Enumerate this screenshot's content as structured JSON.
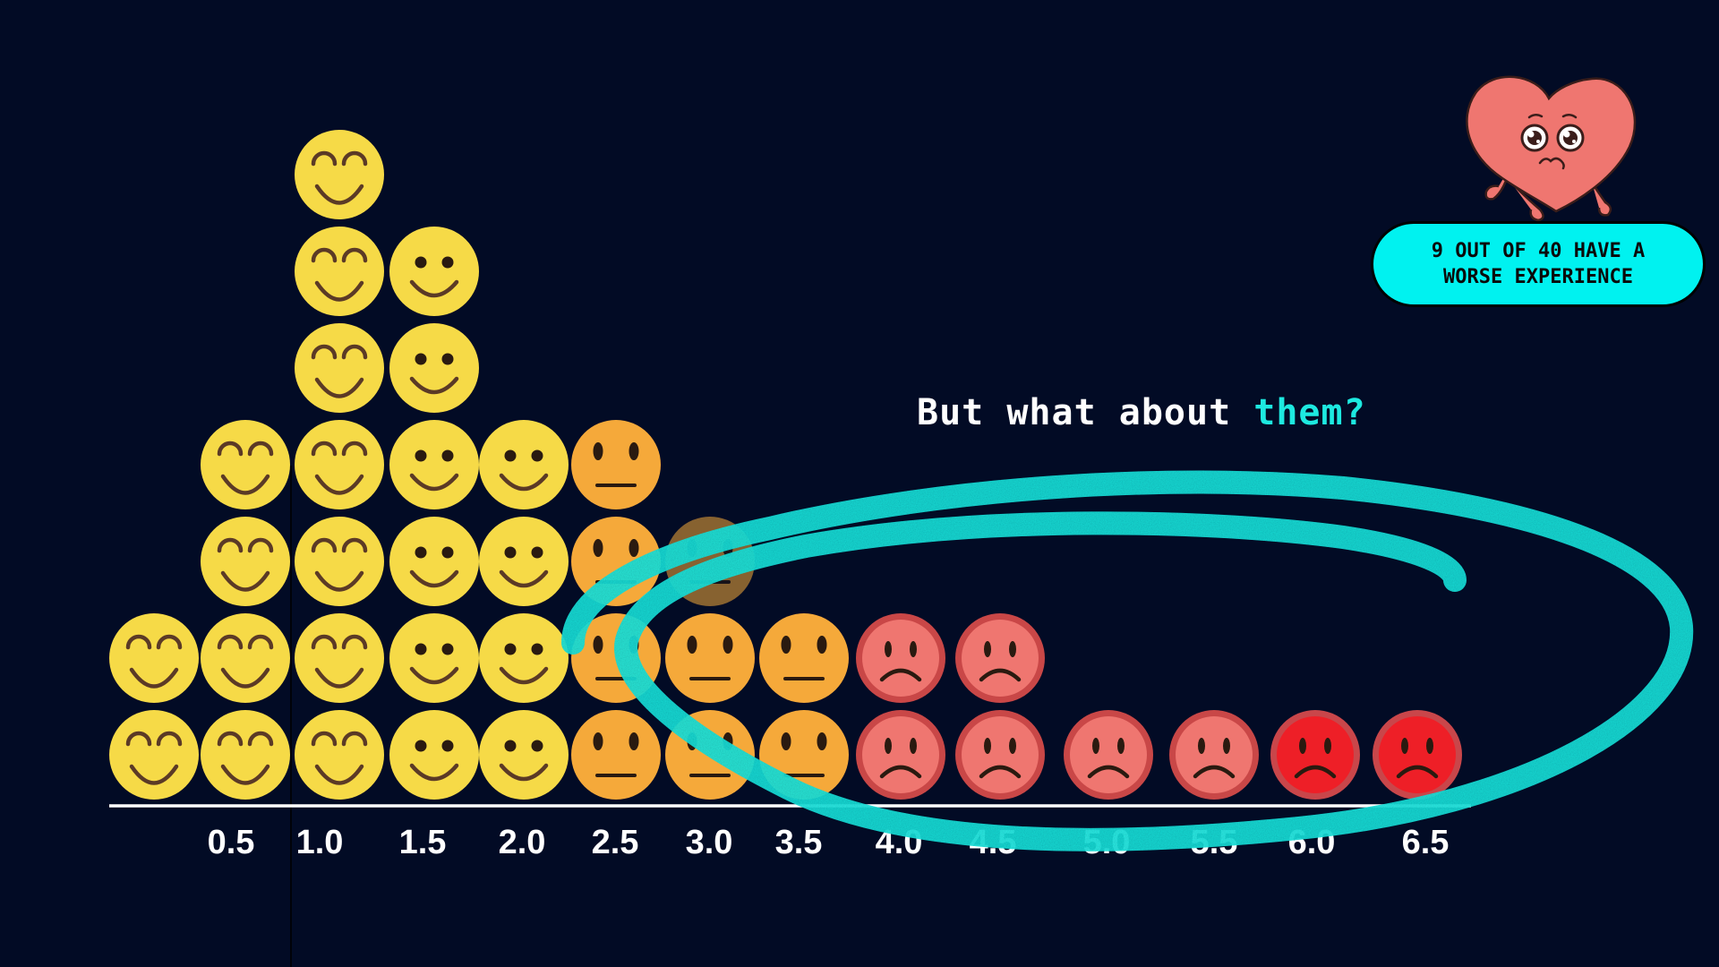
{
  "headline": {
    "prefix": "But what about ",
    "highlight": "them?"
  },
  "callout": {
    "line1": "9 OUT OF 40 HAVE A",
    "line2": "WORSE EXPERIENCE"
  },
  "colors": {
    "background": "#020b25",
    "happy": "#f6da47",
    "neutral": "#f5a93a",
    "sad": "#ef7670",
    "sad_ring": "#c94747",
    "very_sad": "#ee1f27",
    "very_sad_ring": "#c9464a",
    "accent": "#1de9e0",
    "feature": "#5b3a26",
    "feature_dark": "#2a1a10"
  },
  "icons": {
    "heart": "sad-heart-character-icon",
    "happy": "grinning-face-icon",
    "smile": "smiling-face-icon",
    "neutral": "neutral-face-icon",
    "sad": "frowning-face-icon"
  },
  "chart_data": {
    "type": "dot-histogram",
    "title": "",
    "xlabel": "",
    "ylabel": "",
    "tick_labels": [
      "0.5",
      "1.0",
      "1.5",
      "2.0",
      "2.5",
      "3.0",
      "3.5",
      "4.0",
      "4.5",
      "5.0",
      "5.5",
      "6.0",
      "6.5"
    ],
    "columns": [
      {
        "count": 2,
        "mood": "happy"
      },
      {
        "count": 4,
        "mood": "happy"
      },
      {
        "count": 7,
        "mood": "happy"
      },
      {
        "count": 6,
        "mood": "smile"
      },
      {
        "count": 4,
        "mood": "smile"
      },
      {
        "count": 4,
        "mood": "neutral"
      },
      {
        "count": 3,
        "mood": "neutral"
      },
      {
        "count": 2,
        "mood": "neutral"
      },
      {
        "count": 2,
        "mood": "sad"
      },
      {
        "count": 2,
        "mood": "sad"
      },
      {
        "count": 1,
        "mood": "sad"
      },
      {
        "count": 1,
        "mood": "sad"
      },
      {
        "count": 1,
        "mood": "very_sad"
      },
      {
        "count": 1,
        "mood": "very_sad"
      }
    ],
    "total": 40,
    "annotation": "circled group of worse-experience faces"
  }
}
